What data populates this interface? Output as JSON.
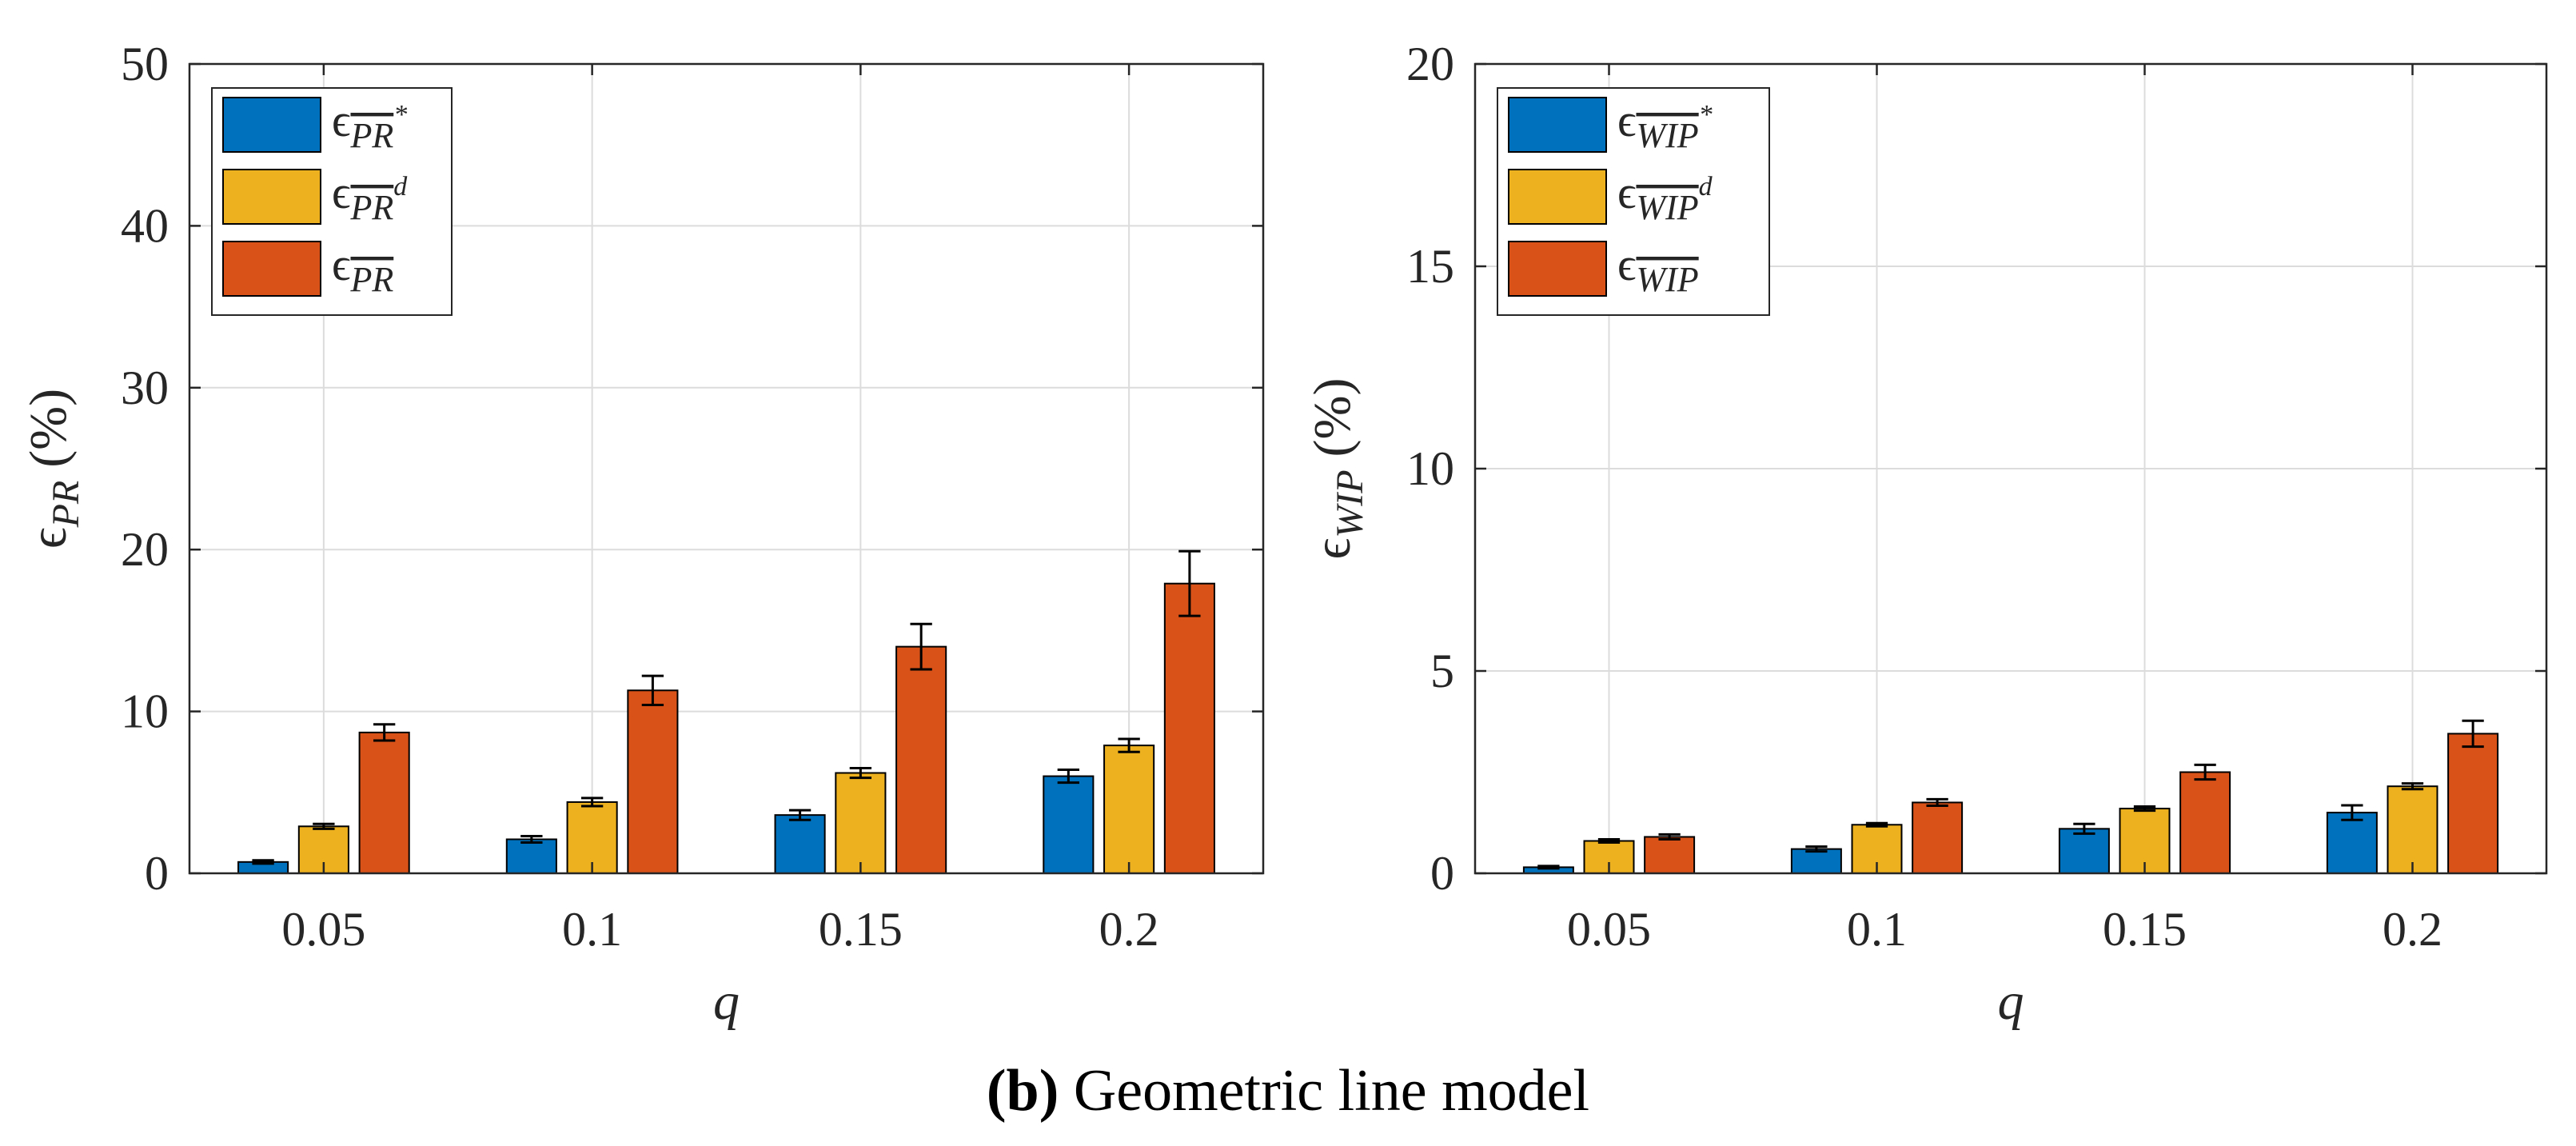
{
  "figure": {
    "caption_bold": "(b)",
    "caption_text": " Geometric line model"
  },
  "colors": {
    "series_star": "#0072BD",
    "series_d": "#EDB120",
    "series_plain": "#D95319",
    "axes": "#262626",
    "grid": "#dcdcdc"
  },
  "chart_data": [
    {
      "type": "bar",
      "categories": [
        "0.05",
        "0.1",
        "0.15",
        "0.2"
      ],
      "xlabel": "q",
      "ylabel": "ε_PR (%)",
      "ylabel_base": "ϵ",
      "ylabel_sub": "PR",
      "ylabel_unit": "(%)",
      "ylim": [
        0,
        50
      ],
      "yticks": [
        0,
        10,
        20,
        30,
        40,
        50
      ],
      "grid": true,
      "legend_position": "top-left",
      "series": [
        {
          "name": "ε_PR*",
          "legend_sub": "PR",
          "legend_sup": "*",
          "values": [
            0.7,
            2.1,
            3.6,
            6.0
          ],
          "errors": [
            0.1,
            0.2,
            0.3,
            0.4
          ]
        },
        {
          "name": "ε_PRd",
          "legend_sub": "PR",
          "legend_sup": "d",
          "values": [
            2.9,
            4.4,
            6.2,
            7.9
          ],
          "errors": [
            0.15,
            0.25,
            0.3,
            0.4
          ]
        },
        {
          "name": "ε_PR",
          "legend_sub": "PR",
          "legend_sup": "",
          "values": [
            8.7,
            11.3,
            14.0,
            17.9
          ],
          "errors": [
            0.5,
            0.9,
            1.4,
            2.0
          ]
        }
      ]
    },
    {
      "type": "bar",
      "categories": [
        "0.05",
        "0.1",
        "0.15",
        "0.2"
      ],
      "xlabel": "q",
      "ylabel": "ε_WIP (%)",
      "ylabel_base": "ϵ",
      "ylabel_sub": "WIP",
      "ylabel_unit": "(%)",
      "ylim": [
        0,
        20
      ],
      "yticks": [
        0,
        5,
        10,
        15,
        20
      ],
      "grid": true,
      "legend_position": "top-left",
      "series": [
        {
          "name": "ε_WIP*",
          "legend_sub": "WIP",
          "legend_sup": "*",
          "values": [
            0.15,
            0.6,
            1.1,
            1.5
          ],
          "errors": [
            0.03,
            0.06,
            0.12,
            0.18
          ]
        },
        {
          "name": "ε_WIPd",
          "legend_sub": "WIP",
          "legend_sup": "d",
          "values": [
            0.8,
            1.2,
            1.6,
            2.15
          ],
          "errors": [
            0.04,
            0.04,
            0.05,
            0.07
          ]
        },
        {
          "name": "ε_WIP",
          "legend_sub": "WIP",
          "legend_sup": "",
          "values": [
            0.9,
            1.75,
            2.5,
            3.45
          ],
          "errors": [
            0.06,
            0.08,
            0.18,
            0.32
          ]
        }
      ]
    }
  ]
}
